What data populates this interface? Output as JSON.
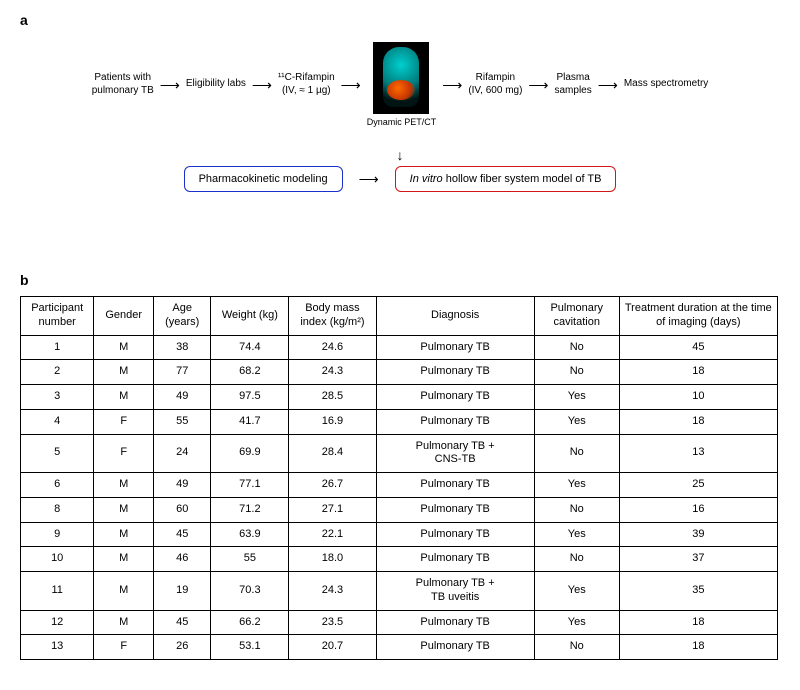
{
  "panel_a": {
    "label": "a",
    "flow": {
      "n1": "Patients with\npulmonary TB",
      "n2": "Eligibility labs",
      "n3": "¹¹C-Rifampin\n(IV, ≈ 1 µg)",
      "n4_caption": "Dynamic PET/CT",
      "n5": "Rifampin\n(IV, 600 mg)",
      "n6": "Plasma\nsamples",
      "n7": "Mass spectrometry",
      "branch_box1": "Pharmacokinetic\nmodeling",
      "branch_box2_prefix": "In vitro",
      "branch_box2_rest": " hollow fiber\nsystem model of TB"
    },
    "colors": {
      "box_blue": "#1a30c9",
      "box_red": "#d01616",
      "petct_bg": "#000000"
    }
  },
  "panel_b": {
    "label": "b",
    "headers": {
      "pn": "Participant\nnumber",
      "gender": "Gender",
      "age": "Age\n(years)",
      "weight": "Weight (kg)",
      "bmi": "Body mass\nindex\n(kg/m²)",
      "dx": "Diagnosis",
      "cav": "Pulmonary\ncavitation",
      "dur": "Treatment duration\nat the time of\nimaging (days)"
    },
    "rows": [
      {
        "pn": "1",
        "gender": "M",
        "age": "38",
        "weight": "74.4",
        "bmi": "24.6",
        "dx": "Pulmonary TB",
        "cav": "No",
        "dur": "45"
      },
      {
        "pn": "2",
        "gender": "M",
        "age": "77",
        "weight": "68.2",
        "bmi": "24.3",
        "dx": "Pulmonary TB",
        "cav": "No",
        "dur": "18"
      },
      {
        "pn": "3",
        "gender": "M",
        "age": "49",
        "weight": "97.5",
        "bmi": "28.5",
        "dx": "Pulmonary TB",
        "cav": "Yes",
        "dur": "10"
      },
      {
        "pn": "4",
        "gender": "F",
        "age": "55",
        "weight": "41.7",
        "bmi": "16.9",
        "dx": "Pulmonary TB",
        "cav": "Yes",
        "dur": "18"
      },
      {
        "pn": "5",
        "gender": "F",
        "age": "24",
        "weight": "69.9",
        "bmi": "28.4",
        "dx": "Pulmonary TB +\nCNS-TB",
        "cav": "No",
        "dur": "13"
      },
      {
        "pn": "6",
        "gender": "M",
        "age": "49",
        "weight": "77.1",
        "bmi": "26.7",
        "dx": "Pulmonary TB",
        "cav": "Yes",
        "dur": "25"
      },
      {
        "pn": "8",
        "gender": "M",
        "age": "60",
        "weight": "71.2",
        "bmi": "27.1",
        "dx": "Pulmonary TB",
        "cav": "No",
        "dur": "16"
      },
      {
        "pn": "9",
        "gender": "M",
        "age": "45",
        "weight": "63.9",
        "bmi": "22.1",
        "dx": "Pulmonary TB",
        "cav": "Yes",
        "dur": "39"
      },
      {
        "pn": "10",
        "gender": "M",
        "age": "46",
        "weight": "55",
        "bmi": "18.0",
        "dx": "Pulmonary TB",
        "cav": "No",
        "dur": "37"
      },
      {
        "pn": "11",
        "gender": "M",
        "age": "19",
        "weight": "70.3",
        "bmi": "24.3",
        "dx": "Pulmonary TB +\nTB uveitis",
        "cav": "Yes",
        "dur": "35"
      },
      {
        "pn": "12",
        "gender": "M",
        "age": "45",
        "weight": "66.2",
        "bmi": "23.5",
        "dx": "Pulmonary TB",
        "cav": "Yes",
        "dur": "18"
      },
      {
        "pn": "13",
        "gender": "F",
        "age": "26",
        "weight": "53.1",
        "bmi": "20.7",
        "dx": "Pulmonary TB",
        "cav": "No",
        "dur": "18"
      }
    ]
  },
  "glyphs": {
    "arrow_right": "⟶",
    "arrow_down": "↓"
  }
}
